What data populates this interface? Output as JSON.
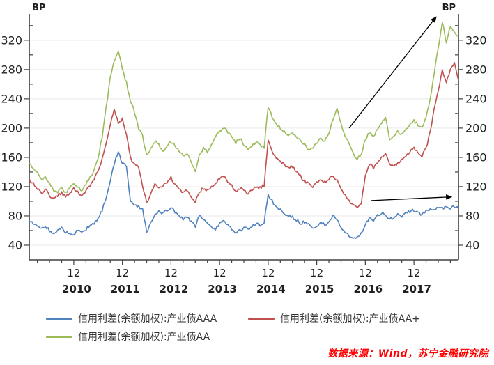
{
  "chart_data": {
    "type": "line",
    "title": "",
    "unit_label_left": "BP",
    "unit_label_right": "BP",
    "frequency": "monthly",
    "x_start": "2010-01",
    "x_end": "2018-11",
    "x_year_labels": [
      "2010",
      "2011",
      "2012",
      "2013",
      "2014",
      "2015",
      "2016",
      "2017"
    ],
    "x_december_tick_label": "12",
    "y_axis": {
      "unit": "BP",
      "range": [
        20,
        356
      ],
      "major_ticks": [
        40,
        80,
        120,
        160,
        200,
        240,
        280,
        320
      ],
      "minor_step": 20,
      "grid": "horizontal-only"
    },
    "legend_position": "bottom-left",
    "series": [
      {
        "name": "信用利差(余额加权):产业债AAA",
        "color": "#4f81bd",
        "values": [
          73,
          70,
          66,
          62,
          66,
          60,
          56,
          60,
          64,
          58,
          54,
          56,
          60,
          57,
          62,
          66,
          70,
          76,
          88,
          106,
          128,
          152,
          168,
          152,
          148,
          100,
          96,
          93,
          88,
          58,
          70,
          80,
          86,
          84,
          88,
          92,
          86,
          80,
          76,
          78,
          72,
          66,
          80,
          76,
          70,
          64,
          62,
          70,
          73,
          68,
          62,
          55,
          60,
          64,
          62,
          66,
          70,
          68,
          72,
          108,
          100,
          93,
          88,
          84,
          80,
          78,
          74,
          70,
          72,
          68,
          64,
          66,
          70,
          68,
          72,
          80,
          76,
          64,
          58,
          52,
          48,
          50,
          56,
          68,
          78,
          74,
          80,
          84,
          82,
          76,
          78,
          82,
          80,
          84,
          86,
          88,
          84,
          82,
          86,
          90,
          88,
          92,
          90,
          94,
          91,
          93,
          90
        ]
      },
      {
        "name": "信用利差(余额加权):产业债AA+",
        "color": "#c0504d",
        "values": [
          130,
          125,
          118,
          112,
          116,
          108,
          104,
          108,
          112,
          106,
          110,
          118,
          112,
          108,
          115,
          122,
          130,
          142,
          158,
          180,
          205,
          226,
          206,
          212,
          190,
          160,
          150,
          148,
          120,
          98,
          110,
          124,
          118,
          122,
          126,
          132,
          124,
          118,
          112,
          115,
          106,
          99,
          112,
          118,
          115,
          120,
          126,
          131,
          135,
          128,
          122,
          112,
          118,
          114,
          110,
          115,
          120,
          118,
          122,
          182,
          168,
          160,
          155,
          150,
          146,
          148,
          140,
          134,
          128,
          124,
          120,
          126,
          130,
          126,
          130,
          136,
          128,
          116,
          108,
          100,
          94,
          90,
          98,
          135,
          151,
          146,
          152,
          160,
          165,
          150,
          148,
          152,
          156,
          162,
          168,
          172,
          166,
          162,
          172,
          195,
          225,
          250,
          278,
          262,
          280,
          288,
          265
        ]
      },
      {
        "name": "信用利差(余额加权):产业债AA",
        "color": "#9bbb59",
        "values": [
          152,
          145,
          138,
          130,
          134,
          124,
          116,
          112,
          118,
          112,
          118,
          126,
          120,
          115,
          124,
          132,
          142,
          160,
          188,
          228,
          268,
          292,
          306,
          280,
          262,
          238,
          222,
          200,
          188,
          162,
          172,
          182,
          178,
          168,
          174,
          182,
          176,
          168,
          162,
          166,
          155,
          140,
          162,
          172,
          168,
          178,
          188,
          196,
          200,
          195,
          188,
          180,
          186,
          178,
          170,
          175,
          182,
          178,
          172,
          230,
          215,
          206,
          200,
          196,
          190,
          195,
          188,
          182,
          178,
          170,
          174,
          180,
          186,
          182,
          192,
          212,
          228,
          205,
          190,
          178,
          165,
          158,
          165,
          185,
          194,
          188,
          198,
          208,
          215,
          182,
          188,
          195,
          192,
          198,
          205,
          210,
          205,
          200,
          215,
          240,
          275,
          310,
          345,
          318,
          340,
          330,
          325
        ]
      }
    ],
    "annotations": [
      {
        "name": "arrow-to-aa-2018-peak",
        "shape": "arrow",
        "from": {
          "month_index": 79,
          "bp": 200
        },
        "to": {
          "month_index": 100.5,
          "bp": 352
        }
      },
      {
        "name": "arrow-to-aaa-end",
        "shape": "arrow",
        "from": {
          "month_index": 84.5,
          "bp": 101
        },
        "to": {
          "month_index": 104.3,
          "bp": 106
        }
      }
    ],
    "noise_amplitude_bp": 2
  },
  "legend": {
    "items": [
      {
        "label": "信用利差(余额加权):产业债AAA",
        "color": "#4f81bd"
      },
      {
        "label": "信用利差(余额加权):产业债AA+",
        "color": "#c0504d"
      },
      {
        "label": "信用利差(余额加权):产业债AA",
        "color": "#9bbb59"
      }
    ]
  },
  "source": {
    "text": "数据来源：Wind，苏宁金融研究院",
    "color": "#ff0000"
  },
  "colors": {
    "axis": "#404040",
    "grid": "#e9e9e9",
    "tick_label": "#1f1f1f",
    "annotation": "#000000"
  }
}
